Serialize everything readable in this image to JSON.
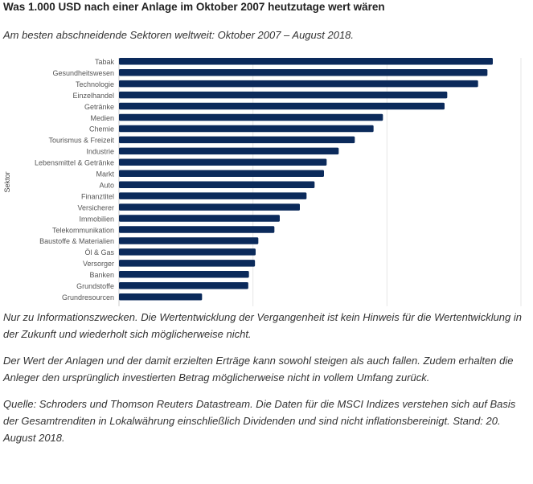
{
  "title": "Was 1.000 USD nach einer Anlage im Oktober 2007 heutzutage wert wären",
  "subtitle": "Am besten abschneidende Sektoren weltweit: Oktober 2007 – August 2018.",
  "chart_data": {
    "type": "bar",
    "orientation": "horizontal",
    "ylabel": "Sektor",
    "xlabel": "",
    "xlim": [
      0,
      3000
    ],
    "xticks": [
      "$0",
      "$1000",
      "$2000",
      "$3000"
    ],
    "grid": true,
    "bar_color": "#0b2a5b",
    "categories": [
      "Tabak",
      "Gesundheitswesen",
      "Technologie",
      "Einzelhandel",
      "Getränke",
      "Medien",
      "Chemie",
      "Tourismus & Freizeit",
      "Industrie",
      "Lebensmittel & Getränke",
      "Markt",
      "Auto",
      "Finanztitel",
      "Versicherer",
      "Immobilien",
      "Telekommunikation",
      "Baustoffe & Materialien",
      "Öl & Gas",
      "Versorger",
      "Banken",
      "Grundstoffe",
      "Grundresourcen"
    ],
    "values": [
      2790,
      2750,
      2680,
      2450,
      2430,
      1970,
      1900,
      1760,
      1640,
      1550,
      1530,
      1460,
      1400,
      1350,
      1200,
      1160,
      1040,
      1020,
      1015,
      970,
      965,
      620
    ]
  },
  "notes": [
    "Nur zu Informationszwecken. Die Wertentwicklung der Vergangenheit ist kein Hinweis für die Wertentwicklung in der Zukunft und wiederholt sich möglicherweise nicht.",
    "Der Wert der Anlagen und der damit erzielten Erträge kann sowohl steigen als auch fallen. Zudem erhalten die Anleger den ursprünglich investierten Betrag möglicherweise nicht in vollem Umfang zurück.",
    "Quelle: Schroders und Thomson Reuters Datastream. Die Daten für die MSCI Indizes verstehen sich auf Basis der Gesamtrenditen in Lokalwährung einschließlich Dividenden und sind nicht inflationsbereinigt. Stand: 20. August 2018."
  ]
}
